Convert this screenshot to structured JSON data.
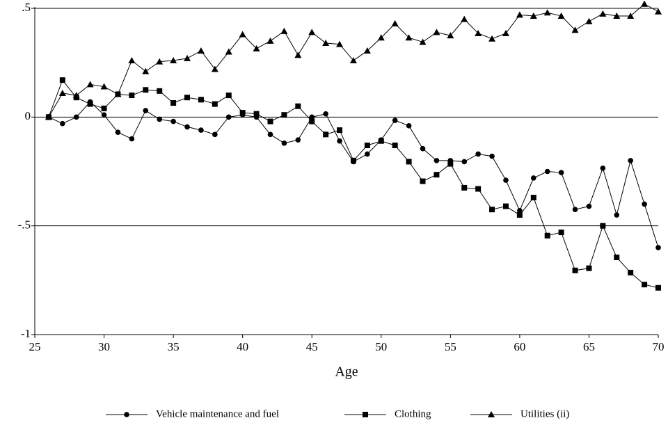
{
  "chart_data": {
    "type": "line",
    "x_label": "Age",
    "x": [
      26,
      27,
      28,
      29,
      30,
      31,
      32,
      33,
      34,
      35,
      36,
      37,
      38,
      39,
      40,
      41,
      42,
      43,
      44,
      45,
      46,
      47,
      48,
      49,
      50,
      51,
      52,
      53,
      54,
      55,
      56,
      57,
      58,
      59,
      60,
      61,
      62,
      63,
      64,
      65,
      66,
      67,
      68,
      69,
      70
    ],
    "series": [
      {
        "name": "Vehicle maintenance and fuel",
        "color": "#000000",
        "marker": "circle",
        "values": [
          0,
          -0.03,
          0,
          0.07,
          0.01,
          -0.07,
          -0.1,
          0.03,
          -0.01,
          -0.02,
          -0.045,
          -0.06,
          -0.08,
          0,
          0.01,
          0,
          -0.08,
          -0.12,
          -0.105,
          0,
          0.015,
          -0.11,
          -0.205,
          -0.17,
          -0.105,
          -0.015,
          -0.04,
          -0.145,
          -0.2,
          -0.2,
          -0.205,
          -0.17,
          -0.18,
          -0.29,
          -0.43,
          -0.28,
          -0.25,
          -0.255,
          -0.425,
          -0.41,
          -0.235,
          -0.45,
          -0.2,
          -0.4,
          -0.6
        ]
      },
      {
        "name": "Clothing",
        "color": "#000000",
        "marker": "square",
        "values": [
          0,
          0.17,
          0.09,
          0.06,
          0.04,
          0.105,
          0.1,
          0.125,
          0.12,
          0.065,
          0.09,
          0.08,
          0.06,
          0.1,
          0.02,
          0.015,
          -0.02,
          0.01,
          0.05,
          -0.02,
          -0.08,
          -0.06,
          -0.2,
          -0.13,
          -0.11,
          -0.13,
          -0.205,
          -0.295,
          -0.265,
          -0.215,
          -0.325,
          -0.33,
          -0.425,
          -0.41,
          -0.45,
          -0.37,
          -0.545,
          -0.53,
          -0.705,
          -0.695,
          -0.5,
          -0.645,
          -0.715,
          -0.77,
          -0.785
        ]
      },
      {
        "name": "Utilities (ii)",
        "color": "#000000",
        "marker": "triangle",
        "values": [
          0,
          0.11,
          0.1,
          0.15,
          0.14,
          0.105,
          0.26,
          0.21,
          0.255,
          0.26,
          0.27,
          0.305,
          0.22,
          0.3,
          0.38,
          0.315,
          0.35,
          0.395,
          0.285,
          0.39,
          0.34,
          0.335,
          0.26,
          0.305,
          0.365,
          0.43,
          0.365,
          0.345,
          0.39,
          0.375,
          0.45,
          0.385,
          0.36,
          0.385,
          0.47,
          0.465,
          0.48,
          0.465,
          0.4,
          0.44,
          0.475,
          0.465,
          0.465,
          0.52,
          0.485
        ]
      }
    ],
    "xlim": [
      25,
      70
    ],
    "xticks": [
      25,
      30,
      35,
      40,
      45,
      50,
      55,
      60,
      65,
      70
    ],
    "ylim": [
      -1,
      0.5
    ],
    "yticks": [
      {
        "value": 0.5,
        "label": ".5"
      },
      0,
      {
        "value": -0.5,
        "label": "-.5"
      },
      -1
    ],
    "grid": true,
    "legend": "bottom"
  }
}
